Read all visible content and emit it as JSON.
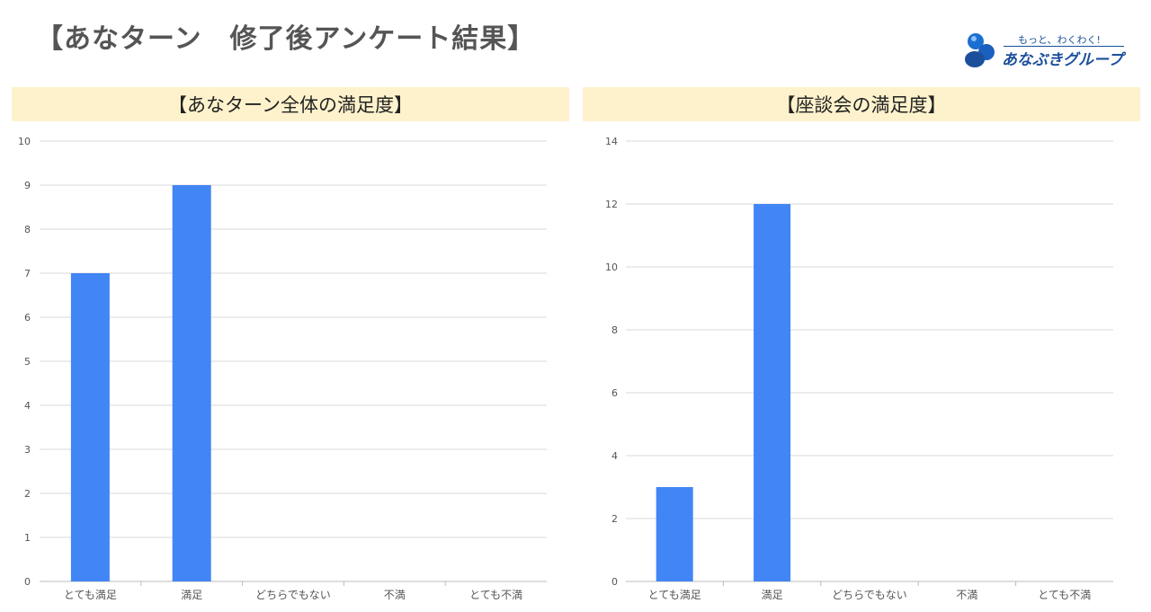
{
  "page": {
    "title": "【あなターン　修了後アンケート結果】"
  },
  "logo": {
    "tagline": "もっと、わくわく!",
    "brand": "あなぶきグループ"
  },
  "colors": {
    "bar": "#4285f4",
    "header_bg": "#fef2cc",
    "grid": "#d9d9d9",
    "axis_text": "#555555"
  },
  "chart_data": [
    {
      "type": "bar",
      "title": "【あなターン全体の満足度】",
      "categories": [
        "とても満足",
        "満足",
        "どちらでもない",
        "不満",
        "とても不満"
      ],
      "values": [
        7,
        9,
        0,
        0,
        0
      ],
      "ylim": [
        0,
        10
      ],
      "yticks": [
        0,
        1,
        2,
        3,
        4,
        5,
        6,
        7,
        8,
        9,
        10
      ],
      "grid": true,
      "legend": "none"
    },
    {
      "type": "bar",
      "title": "【座談会の満足度】",
      "categories": [
        "とても満足",
        "満足",
        "どちらでもない",
        "不満",
        "とても不満"
      ],
      "values": [
        3,
        12,
        0,
        0,
        0
      ],
      "ylim": [
        0,
        14
      ],
      "yticks": [
        0,
        2,
        4,
        6,
        8,
        10,
        12,
        14
      ],
      "grid": true,
      "legend": "none"
    }
  ]
}
